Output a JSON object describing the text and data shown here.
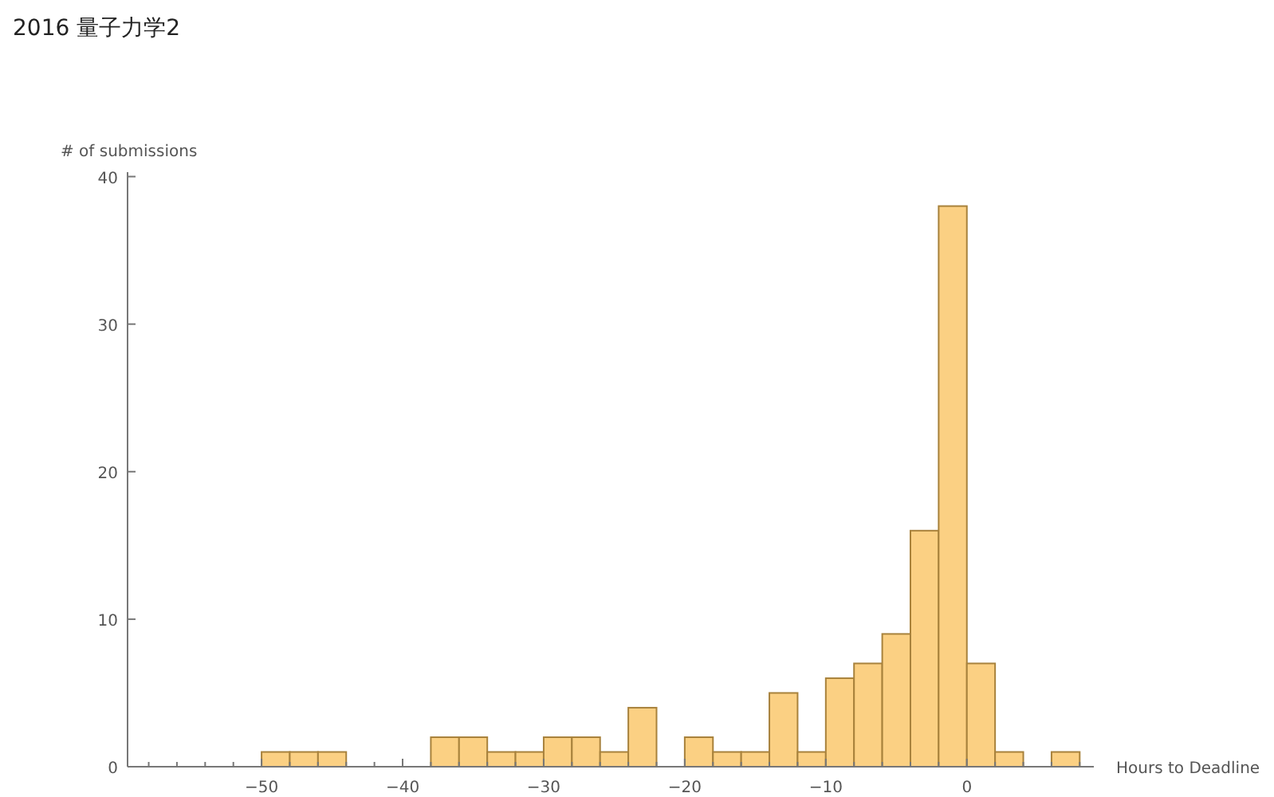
{
  "chart_data": {
    "type": "histogram",
    "title": "2016 量子力学2",
    "xlabel": "Hours to Deadline",
    "ylabel": "# of submissions",
    "bins": [
      -50,
      -48,
      -46,
      -44,
      -42,
      -40,
      -38,
      -36,
      -34,
      -32,
      -30,
      -28,
      -26,
      -24,
      -22,
      -20,
      -18,
      -16,
      -14,
      -12,
      -10,
      -8,
      -6,
      -4,
      -2,
      0,
      2,
      4,
      6,
      8
    ],
    "values": [
      1,
      1,
      1,
      0,
      0,
      0,
      2,
      2,
      1,
      1,
      2,
      2,
      1,
      4,
      0,
      2,
      1,
      1,
      5,
      1,
      6,
      7,
      9,
      16,
      38,
      7,
      1,
      0,
      1
    ],
    "color": "#fbd083",
    "xlim": [
      -59.5,
      9
    ],
    "ylim": [
      0,
      40.3
    ],
    "xticks": [
      {
        "value": -58,
        "label": null
      },
      {
        "value": -56,
        "label": null
      },
      {
        "value": -54,
        "label": null
      },
      {
        "value": -52,
        "label": null
      },
      -50,
      {
        "value": -48,
        "label": null
      },
      {
        "value": -46,
        "label": null
      },
      {
        "value": -44,
        "label": null
      },
      {
        "value": -42,
        "label": null
      },
      -40,
      {
        "value": -38,
        "label": null
      },
      {
        "value": -36,
        "label": null
      },
      {
        "value": -34,
        "label": null
      },
      {
        "value": -32,
        "label": null
      },
      -30,
      {
        "value": -28,
        "label": null
      },
      {
        "value": -26,
        "label": null
      },
      {
        "value": -24,
        "label": null
      },
      {
        "value": -22,
        "label": null
      },
      -20,
      {
        "value": -18,
        "label": null
      },
      {
        "value": -16,
        "label": null
      },
      {
        "value": -14,
        "label": null
      },
      {
        "value": -12,
        "label": null
      },
      -10,
      {
        "value": -8,
        "label": null
      },
      {
        "value": -6,
        "label": null
      },
      {
        "value": -4,
        "label": null
      },
      {
        "value": -2,
        "label": null
      },
      0,
      {
        "value": 2,
        "label": null
      },
      {
        "value": 4,
        "label": null
      },
      {
        "value": 6,
        "label": null
      },
      {
        "value": 8,
        "label": null
      }
    ],
    "yticks": [
      0,
      10,
      20,
      30,
      40
    ],
    "grid": false
  }
}
